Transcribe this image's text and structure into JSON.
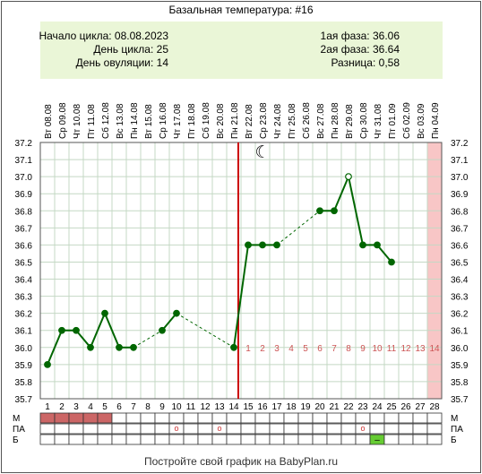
{
  "title": "Базальная температура: #16",
  "info": {
    "cycle_start": "Начало цикла: 08.08.2023",
    "cycle_day": "День цикла: 25",
    "ovulation_day": "День овуляции: 14",
    "phase1": "1ая фаза: 36.06",
    "phase2": "2ая фаза: 36.64",
    "difference": "Разница: 0,58"
  },
  "footer": "Постройте свой график на BabyPlan.ru",
  "colors": {
    "line": "#006600",
    "ovulation": "#cc0000",
    "phase_number": "#cc5555",
    "forecast_band": "#f8c6c6",
    "infobox": "#eaf6d7",
    "menstruation": "#cc6666",
    "lh_positive": "#66cc33"
  },
  "chart_data": {
    "type": "line",
    "x_dates": [
      "Вт 08.08",
      "Ср 09.08",
      "Чт 10.08",
      "Пт 11.08",
      "Сб 12.08",
      "Вс 13.08",
      "Пн 14.08",
      "Вт 15.08",
      "Ср 16.08",
      "Чт 17.08",
      "Пт 18.08",
      "Сб 19.08",
      "Вс 20.08",
      "Пн 21.08",
      "Вт 22.08",
      "Ср 23.08",
      "Чт 24.08",
      "Пт 25.08",
      "Сб 26.08",
      "Вс 27.08",
      "Пн 28.08",
      "Вт 29.08",
      "Ср 30.08",
      "Чт 31.08",
      "Пт 01.09",
      "Сб 02.09",
      "Вс 03.09",
      "Пн 04.09"
    ],
    "cycle_days": [
      1,
      2,
      3,
      4,
      5,
      6,
      7,
      8,
      9,
      10,
      11,
      12,
      13,
      14,
      15,
      16,
      17,
      18,
      19,
      20,
      21,
      22,
      23,
      24,
      25,
      26,
      27,
      28
    ],
    "y_ticks": [
      "37.2",
      "37.1",
      "37.0",
      "36.9",
      "36.8",
      "36.7",
      "36.6",
      "36.5",
      "36.4",
      "36.3",
      "36.2",
      "36.1",
      "36.0",
      "35.9",
      "35.8",
      "35.7"
    ],
    "ylim": [
      35.7,
      37.2
    ],
    "temperatures": [
      35.9,
      36.1,
      36.1,
      36.0,
      36.2,
      36.0,
      36.0,
      null,
      36.1,
      36.2,
      null,
      null,
      null,
      36.0,
      36.6,
      36.6,
      36.6,
      null,
      null,
      36.8,
      36.8,
      37.0,
      36.6,
      36.6,
      36.5,
      null,
      null,
      null
    ],
    "open_points": [
      22
    ],
    "ovulation_day": 14,
    "luteal_numbers": [
      "1",
      "2",
      "3",
      "4",
      "5",
      "6",
      "7",
      "8",
      "9",
      "10",
      "11",
      "12",
      "13",
      "14"
    ],
    "luteal_start_day": 15,
    "forecast_day": 28,
    "moon_day": 16,
    "moon_symbol": "☾"
  },
  "table": {
    "row_labels": [
      "М",
      "ПА",
      "Б"
    ],
    "menstruation_days": [
      1,
      2,
      3,
      4,
      5
    ],
    "intercourse_days": [
      10,
      13,
      23
    ],
    "intercourse_symbol": "o",
    "lh_test_days": [
      24
    ],
    "lh_symbol": "–"
  }
}
